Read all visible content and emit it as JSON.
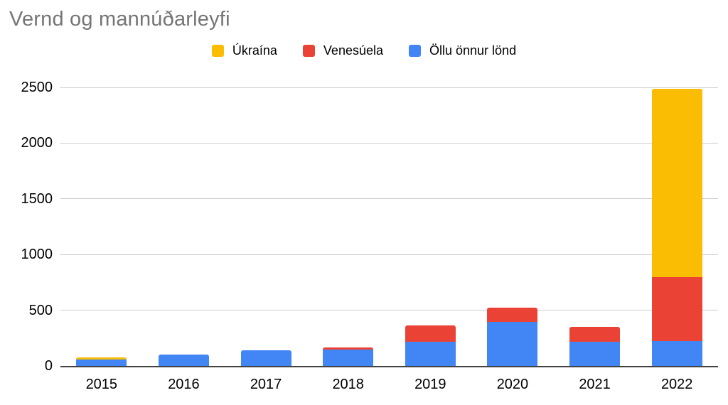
{
  "colors": {
    "background": "#ffffff",
    "title": "#757575",
    "axis_line": "#424242",
    "gridline": "#cccccc",
    "text": "#000000",
    "series_yellow": "#FBBC04",
    "series_red": "#EA4335",
    "series_blue": "#4285F4"
  },
  "chart_data": {
    "type": "bar",
    "stacked": true,
    "title": "Vernd og mannúðarleyfi",
    "categories": [
      "2015",
      "2016",
      "2017",
      "2018",
      "2019",
      "2020",
      "2021",
      "2022"
    ],
    "series": [
      {
        "name": "Úkraína",
        "color": "#FBBC04",
        "values": [
          20,
          0,
          0,
          0,
          0,
          0,
          0,
          1695
        ]
      },
      {
        "name": "Venesúela",
        "color": "#EA4335",
        "values": [
          0,
          0,
          0,
          20,
          150,
          130,
          135,
          570
        ]
      },
      {
        "name": "Öllu önnur lönd",
        "color": "#4285F4",
        "values": [
          55,
          100,
          140,
          145,
          215,
          395,
          215,
          225
        ]
      }
    ],
    "stack_order_bottom_to_top": [
      "Öllu önnur lönd",
      "Venesúela",
      "Úkraína"
    ],
    "totals": [
      75,
      100,
      140,
      165,
      365,
      525,
      350,
      2490
    ],
    "xlabel": "",
    "ylabel": "",
    "ylim": [
      0,
      2500
    ],
    "yticks": [
      0,
      500,
      1000,
      1500,
      2000,
      2500
    ],
    "grid": true,
    "legend_position": "top-center"
  }
}
